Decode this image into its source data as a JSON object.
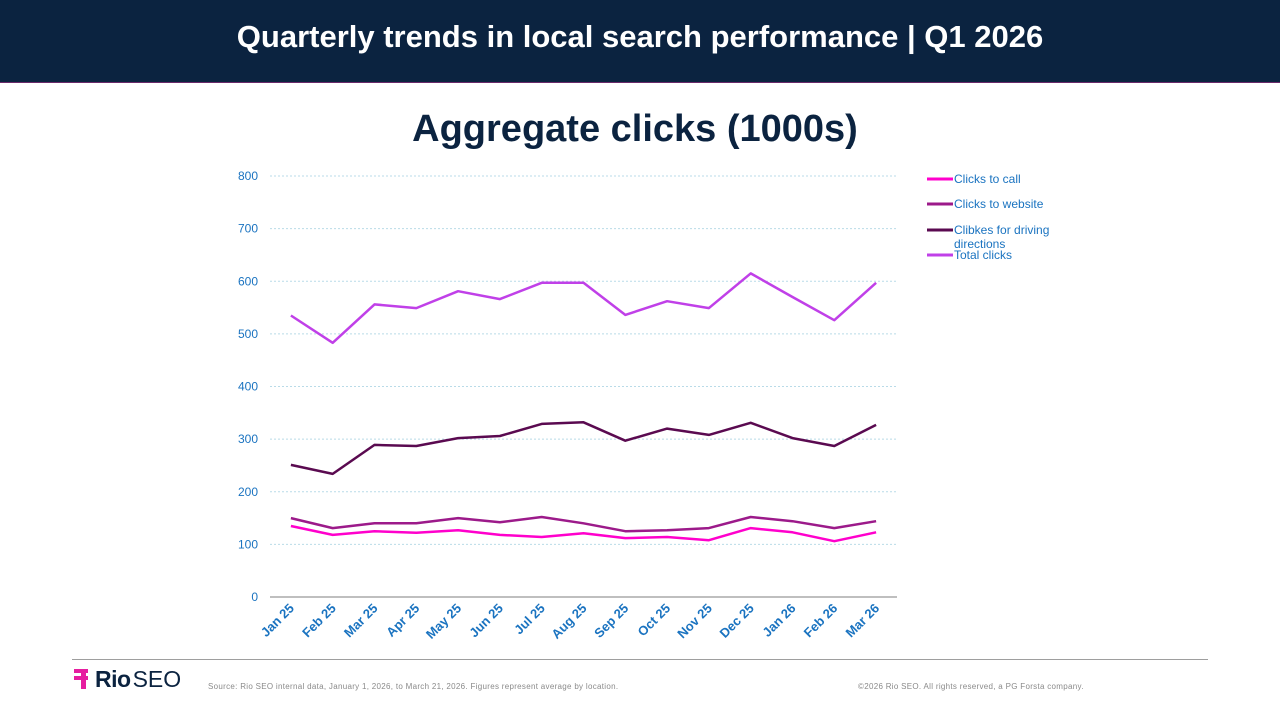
{
  "header": {
    "title": "Quarterly trends in local search performance | Q1 2026"
  },
  "footer": {
    "logo_bold": "Rio",
    "logo_light": "SEO",
    "source": "Source: Rio SEO internal data, January 1, 2026, to March 21, 2026. Figures represent average by location.",
    "copyright": "©2026 Rio SEO. All rights reserved, a PG Forsta company."
  },
  "colors": {
    "header_bg": "#0b2340",
    "title": "#0b2340",
    "tick": "#1a73c0",
    "logo_accent": "#e61ea0"
  },
  "chart_data": {
    "type": "line",
    "title": "Aggregate clicks (1000s)",
    "xlabel": "",
    "ylabel": "",
    "ylim": [
      0,
      800
    ],
    "yticks": [
      0,
      100,
      200,
      300,
      400,
      500,
      600,
      700,
      800
    ],
    "grid": true,
    "legend_position": "right",
    "categories": [
      "Jan 25",
      "Feb 25",
      "Mar 25",
      "Apr 25",
      "May 25",
      "Jun 25",
      "Jul 25",
      "Aug 25",
      "Sep 25",
      "Oct 25",
      "Nov 25",
      "Dec 25",
      "Jan 26",
      "Feb 26",
      "Mar 26"
    ],
    "series": [
      {
        "name": "Clicks to call",
        "color": "#ff00cc",
        "values": [
          135,
          118,
          125,
          122,
          127,
          118,
          114,
          121,
          112,
          114,
          108,
          131,
          123,
          106,
          123
        ]
      },
      {
        "name": "Clicks to website",
        "color": "#9c1a8a",
        "values": [
          150,
          131,
          140,
          140,
          150,
          142,
          152,
          140,
          125,
          127,
          131,
          152,
          144,
          131,
          144
        ]
      },
      {
        "name": "Clibkes for driving directions",
        "color": "#5a0a50",
        "values": [
          251,
          234,
          289,
          287,
          302,
          306,
          329,
          332,
          297,
          320,
          308,
          331,
          302,
          287,
          327
        ]
      },
      {
        "name": "Total clicks",
        "color": "#c040e8",
        "values": [
          535,
          483,
          556,
          549,
          581,
          566,
          597,
          597,
          536,
          562,
          549,
          615,
          570,
          526,
          597
        ]
      }
    ]
  }
}
